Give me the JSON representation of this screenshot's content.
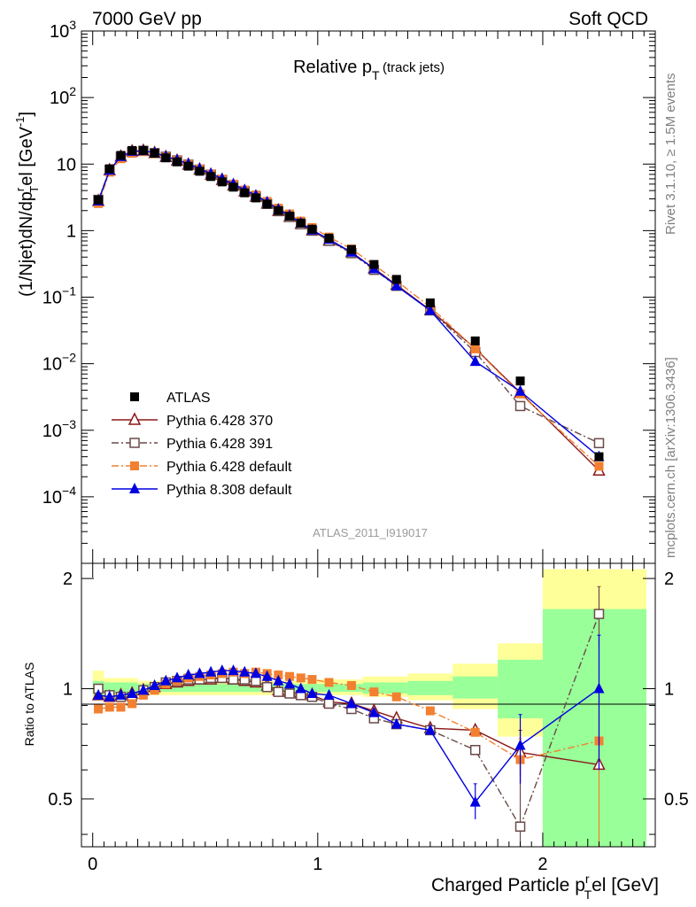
{
  "header": {
    "left": "7000 GeV pp",
    "right": "Soft QCD"
  },
  "side_labels": {
    "rivet": "Rivet 3.1.10, ≥ 1.5M events",
    "mcplots": "mcplots.cern.ch [arXiv:1306.3436]"
  },
  "main_panel": {
    "title": "Relative p",
    "title_sub": "T",
    "title_suffix": "(track jets)",
    "ylabel": "(1/Njet)dN/dp",
    "ylabel_sup1": "r",
    "ylabel_sub": "T",
    "ylabel_tail": "el [GeV",
    "ylabel_sup2": "-1",
    "ylabel_close": "]",
    "watermark": "ATLAS_2011_I919017",
    "yticks": [
      {
        "base": "10",
        "exp": "3",
        "value": 1000
      },
      {
        "base": "10",
        "exp": "2",
        "value": 100
      },
      {
        "base": "10",
        "exp": "",
        "value": 10
      },
      {
        "base": "1",
        "exp": "",
        "value": 1
      },
      {
        "base": "10",
        "exp": "−1",
        "value": 0.1
      },
      {
        "base": "10",
        "exp": "−2",
        "value": 0.01
      },
      {
        "base": "10",
        "exp": "−3",
        "value": 0.001
      },
      {
        "base": "10",
        "exp": "−4",
        "value": 0.0001
      }
    ]
  },
  "ratio_panel": {
    "ylabel": "Ratio to ATLAS",
    "yticks": [
      "0.5",
      "1",
      "2"
    ]
  },
  "xaxis": {
    "label": "Charged Particle p",
    "label_sup": "r",
    "label_sub": "T",
    "label_tail": "el [GeV]",
    "ticks": [
      "0",
      "1",
      "2"
    ]
  },
  "legend": [
    {
      "label": "ATLAS",
      "color": "#000000",
      "marker": "filled-square"
    },
    {
      "label": "Pythia 6.428 370",
      "color": "#8b1a1a",
      "marker": "open-triangle",
      "line": "solid"
    },
    {
      "label": "Pythia 6.428 391",
      "color": "#6b4a4a",
      "marker": "open-square",
      "line": "dashdot"
    },
    {
      "label": "Pythia 6.428 default",
      "color": "#f28030",
      "marker": "filled-square",
      "line": "dashdot"
    },
    {
      "label": "Pythia 8.308 default",
      "color": "#0000e0",
      "marker": "filled-triangle",
      "line": "solid"
    }
  ],
  "chart_data": {
    "type": "scatter",
    "x_range": [
      -0.05,
      2.5
    ],
    "main_ylim": [
      1e-05,
      1000
    ],
    "main_yscale": "log",
    "ratio_ylim": [
      0.37,
      2.2
    ],
    "ratio_yscale": "log",
    "x": [
      0.025,
      0.075,
      0.125,
      0.175,
      0.225,
      0.275,
      0.325,
      0.375,
      0.425,
      0.475,
      0.525,
      0.575,
      0.625,
      0.675,
      0.725,
      0.775,
      0.825,
      0.875,
      0.925,
      0.975,
      1.05,
      1.15,
      1.25,
      1.35,
      1.5,
      1.7,
      1.9,
      2.25
    ],
    "atlas": [
      2.9,
      8.5,
      13.5,
      16.0,
      16.0,
      14.5,
      12.4,
      10.8,
      9.3,
      7.8,
      6.5,
      5.4,
      4.5,
      3.7,
      3.1,
      2.5,
      2.0,
      1.65,
      1.3,
      1.05,
      0.77,
      0.52,
      0.31,
      0.185,
      0.082,
      0.022,
      0.0055,
      0.0004
    ],
    "series": [
      {
        "name": "Pythia 6.428 370",
        "ratio": [
          0.96,
          0.95,
          0.96,
          0.97,
          0.99,
          1.01,
          1.03,
          1.04,
          1.05,
          1.06,
          1.06,
          1.07,
          1.06,
          1.05,
          1.04,
          1.02,
          0.99,
          0.98,
          0.97,
          0.96,
          0.92,
          0.91,
          0.87,
          0.83,
          0.78,
          0.77,
          0.67,
          0.62
        ]
      },
      {
        "name": "Pythia 6.428 391",
        "ratio": [
          1.0,
          0.96,
          0.95,
          0.95,
          0.99,
          1.01,
          1.04,
          1.05,
          1.06,
          1.06,
          1.07,
          1.07,
          1.06,
          1.06,
          1.05,
          1.01,
          0.98,
          0.97,
          0.96,
          0.95,
          0.91,
          0.88,
          0.83,
          0.8,
          0.77,
          0.68,
          0.42,
          1.6
        ]
      },
      {
        "name": "Pythia 6.428 default",
        "ratio": [
          0.88,
          0.89,
          0.89,
          0.91,
          0.96,
          0.99,
          1.03,
          1.05,
          1.07,
          1.08,
          1.09,
          1.1,
          1.11,
          1.1,
          1.11,
          1.1,
          1.09,
          1.08,
          1.07,
          1.06,
          1.04,
          1.02,
          0.98,
          0.95,
          0.87,
          0.76,
          0.64,
          0.72
        ]
      },
      {
        "name": "Pythia 8.308 default",
        "ratio": [
          0.96,
          0.95,
          0.96,
          0.97,
          0.99,
          1.02,
          1.05,
          1.07,
          1.09,
          1.1,
          1.11,
          1.12,
          1.12,
          1.11,
          1.1,
          1.08,
          1.05,
          1.03,
          1.0,
          0.97,
          0.96,
          0.91,
          0.86,
          0.8,
          0.77,
          0.49,
          0.7,
          1.0
        ]
      }
    ],
    "ratio_errors": {
      "Pythia 6.428 391": {
        "26": [
          0.37,
          0.64
        ],
        "27": [
          1.3,
          1.9
        ]
      },
      "Pythia 6.428 default": {
        "26": [
          0.55,
          0.73
        ],
        "27": [
          0.37,
          1.0
        ]
      },
      "Pythia 8.308 default": {
        "25": [
          0.44,
          0.55
        ],
        "26": [
          0.55,
          0.85
        ],
        "27": [
          0.6,
          1.4
        ]
      },
      "Pythia 6.428 370": {
        "26": [
          0.58,
          0.77
        ]
      }
    },
    "bands": [
      {
        "x0": 0.0,
        "x1": 0.05,
        "green": [
          0.96,
          1.05
        ],
        "yellow": [
          0.93,
          1.12
        ]
      },
      {
        "x0": 0.05,
        "x1": 0.2,
        "green": [
          0.97,
          1.04
        ],
        "yellow": [
          0.94,
          1.07
        ]
      },
      {
        "x0": 0.2,
        "x1": 1.0,
        "green": [
          0.98,
          1.03
        ],
        "yellow": [
          0.96,
          1.05
        ]
      },
      {
        "x0": 1.0,
        "x1": 1.2,
        "green": [
          0.98,
          1.03
        ],
        "yellow": [
          0.96,
          1.06
        ]
      },
      {
        "x0": 1.2,
        "x1": 1.4,
        "green": [
          0.97,
          1.04
        ],
        "yellow": [
          0.95,
          1.08
        ]
      },
      {
        "x0": 1.4,
        "x1": 1.6,
        "green": [
          0.96,
          1.05
        ],
        "yellow": [
          0.93,
          1.1
        ]
      },
      {
        "x0": 1.6,
        "x1": 1.8,
        "green": [
          0.94,
          1.08
        ],
        "yellow": [
          0.88,
          1.17
        ]
      },
      {
        "x0": 1.8,
        "x1": 2.0,
        "green": [
          0.83,
          1.2
        ],
        "yellow": [
          0.74,
          1.33
        ]
      },
      {
        "x0": 2.0,
        "x1": 2.5,
        "green": [
          0.37,
          1.65
        ],
        "yellow": [
          0.37,
          2.12
        ]
      }
    ]
  }
}
